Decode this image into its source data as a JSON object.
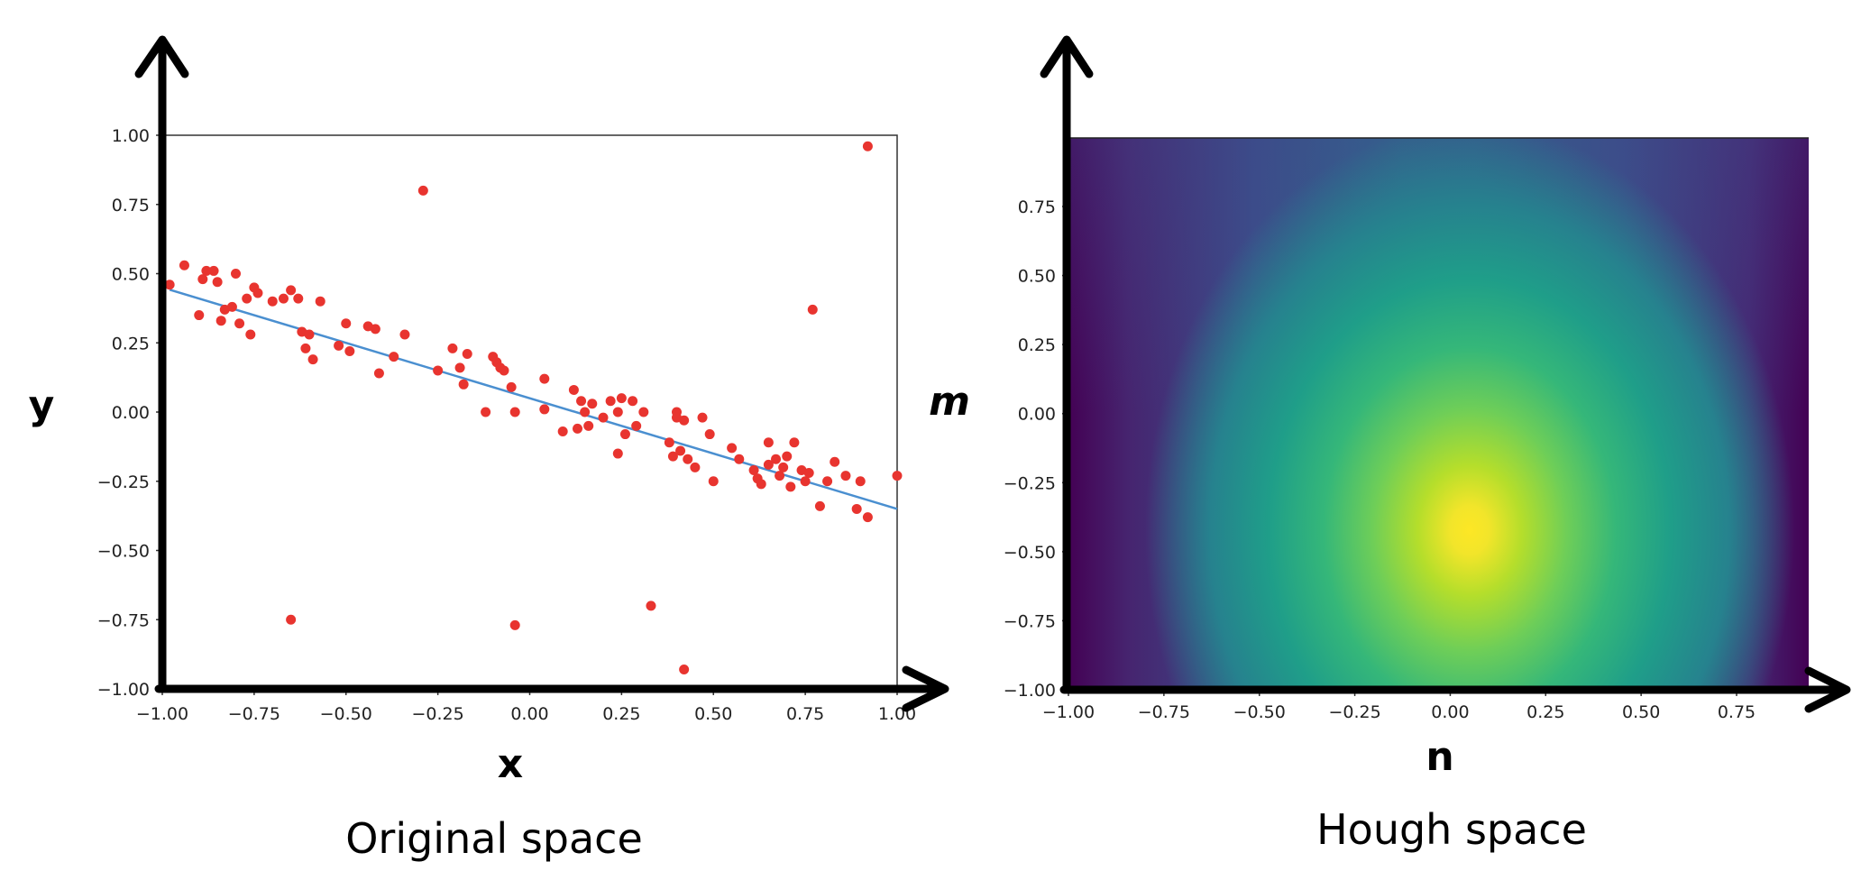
{
  "chart_data": [
    {
      "type": "scatter",
      "panel_caption": "Original space",
      "xlabel": "x",
      "ylabel": "y",
      "xlim": [
        -1.0,
        1.0
      ],
      "ylim": [
        -1.0,
        1.0
      ],
      "x_ticks": [
        "−1.00",
        "−0.75",
        "−0.50",
        "−0.25",
        "0.00",
        "0.25",
        "0.50",
        "0.75",
        "1.00"
      ],
      "y_ticks": [
        "−1.00",
        "−0.75",
        "−0.50",
        "−0.25",
        "0.00",
        "0.25",
        "0.50",
        "0.75",
        "1.00"
      ],
      "colors": {
        "points": "#e8342f",
        "fit_line": "#4a8fd0"
      },
      "fit_line": {
        "slope": -0.4,
        "intercept": 0.05
      },
      "points": [
        [
          -0.98,
          0.46
        ],
        [
          -0.94,
          0.53
        ],
        [
          -0.9,
          0.35
        ],
        [
          -0.89,
          0.48
        ],
        [
          -0.88,
          0.51
        ],
        [
          -0.86,
          0.51
        ],
        [
          -0.85,
          0.47
        ],
        [
          -0.84,
          0.33
        ],
        [
          -0.83,
          0.37
        ],
        [
          -0.81,
          0.38
        ],
        [
          -0.8,
          0.5
        ],
        [
          -0.79,
          0.32
        ],
        [
          -0.77,
          0.41
        ],
        [
          -0.76,
          0.28
        ],
        [
          -0.75,
          0.45
        ],
        [
          -0.74,
          0.43
        ],
        [
          -0.7,
          0.4
        ],
        [
          -0.67,
          0.41
        ],
        [
          -0.65,
          0.44
        ],
        [
          -0.63,
          0.41
        ],
        [
          -0.62,
          0.29
        ],
        [
          -0.61,
          0.23
        ],
        [
          -0.6,
          0.28
        ],
        [
          -0.59,
          0.19
        ],
        [
          -0.57,
          0.4
        ],
        [
          -0.52,
          0.24
        ],
        [
          -0.5,
          0.32
        ],
        [
          -0.49,
          0.22
        ],
        [
          -0.44,
          0.31
        ],
        [
          -0.42,
          0.3
        ],
        [
          -0.41,
          0.14
        ],
        [
          -0.37,
          0.2
        ],
        [
          -0.34,
          0.28
        ],
        [
          -0.25,
          0.15
        ],
        [
          -0.21,
          0.23
        ],
        [
          -0.19,
          0.16
        ],
        [
          -0.18,
          0.1
        ],
        [
          -0.17,
          0.21
        ],
        [
          -0.12,
          0.0
        ],
        [
          -0.1,
          0.2
        ],
        [
          -0.09,
          0.18
        ],
        [
          -0.08,
          0.16
        ],
        [
          -0.07,
          0.15
        ],
        [
          -0.05,
          0.09
        ],
        [
          -0.04,
          0.0
        ],
        [
          0.04,
          0.12
        ],
        [
          0.04,
          0.01
        ],
        [
          0.09,
          -0.07
        ],
        [
          0.12,
          0.08
        ],
        [
          0.13,
          -0.06
        ],
        [
          0.14,
          0.04
        ],
        [
          0.15,
          0.0
        ],
        [
          0.16,
          -0.05
        ],
        [
          0.17,
          0.03
        ],
        [
          0.2,
          -0.02
        ],
        [
          0.22,
          0.04
        ],
        [
          0.24,
          0.0
        ],
        [
          0.24,
          -0.15
        ],
        [
          0.25,
          0.05
        ],
        [
          0.26,
          -0.08
        ],
        [
          0.28,
          0.04
        ],
        [
          0.29,
          -0.05
        ],
        [
          0.31,
          0.0
        ],
        [
          0.38,
          -0.11
        ],
        [
          0.39,
          -0.16
        ],
        [
          0.4,
          0.0
        ],
        [
          0.4,
          -0.02
        ],
        [
          0.41,
          -0.14
        ],
        [
          0.42,
          -0.03
        ],
        [
          0.43,
          -0.17
        ],
        [
          0.45,
          -0.2
        ],
        [
          0.47,
          -0.02
        ],
        [
          0.49,
          -0.08
        ],
        [
          0.5,
          -0.25
        ],
        [
          0.55,
          -0.13
        ],
        [
          0.57,
          -0.17
        ],
        [
          0.61,
          -0.21
        ],
        [
          0.62,
          -0.24
        ],
        [
          0.63,
          -0.26
        ],
        [
          0.65,
          -0.11
        ],
        [
          0.65,
          -0.19
        ],
        [
          0.67,
          -0.17
        ],
        [
          0.68,
          -0.23
        ],
        [
          0.69,
          -0.2
        ],
        [
          0.7,
          -0.16
        ],
        [
          0.71,
          -0.27
        ],
        [
          0.72,
          -0.11
        ],
        [
          0.74,
          -0.21
        ],
        [
          0.75,
          -0.25
        ],
        [
          0.76,
          -0.22
        ],
        [
          0.79,
          -0.34
        ],
        [
          0.81,
          -0.25
        ],
        [
          0.83,
          -0.18
        ],
        [
          0.86,
          -0.23
        ],
        [
          0.89,
          -0.35
        ],
        [
          0.9,
          -0.25
        ],
        [
          0.92,
          -0.38
        ],
        [
          1.0,
          -0.23
        ],
        [
          0.77,
          0.37
        ],
        [
          0.92,
          0.96
        ],
        [
          -0.29,
          0.8
        ],
        [
          -0.65,
          -0.75
        ],
        [
          -0.04,
          -0.77
        ],
        [
          0.33,
          -0.7
        ],
        [
          0.42,
          -0.93
        ]
      ]
    },
    {
      "type": "heatmap",
      "panel_caption": "Hough space",
      "xlabel": "n",
      "ylabel": "m",
      "xlim": [
        -1.0,
        1.0
      ],
      "ylim": [
        -1.0,
        1.0
      ],
      "x_ticks": [
        "−1.00",
        "−0.75",
        "−0.50",
        "−0.25",
        "0.00",
        "0.25",
        "0.50",
        "0.75"
      ],
      "y_ticks": [
        "−1.00",
        "−0.75",
        "−0.50",
        "−0.25",
        "0.00",
        "0.25",
        "0.50",
        "0.75"
      ],
      "colormap": "viridis",
      "peak": {
        "n": 0.07,
        "m": -0.42
      },
      "colors": {
        "low": "#440154",
        "mid": "#21918c",
        "high": "#fde725"
      }
    }
  ]
}
